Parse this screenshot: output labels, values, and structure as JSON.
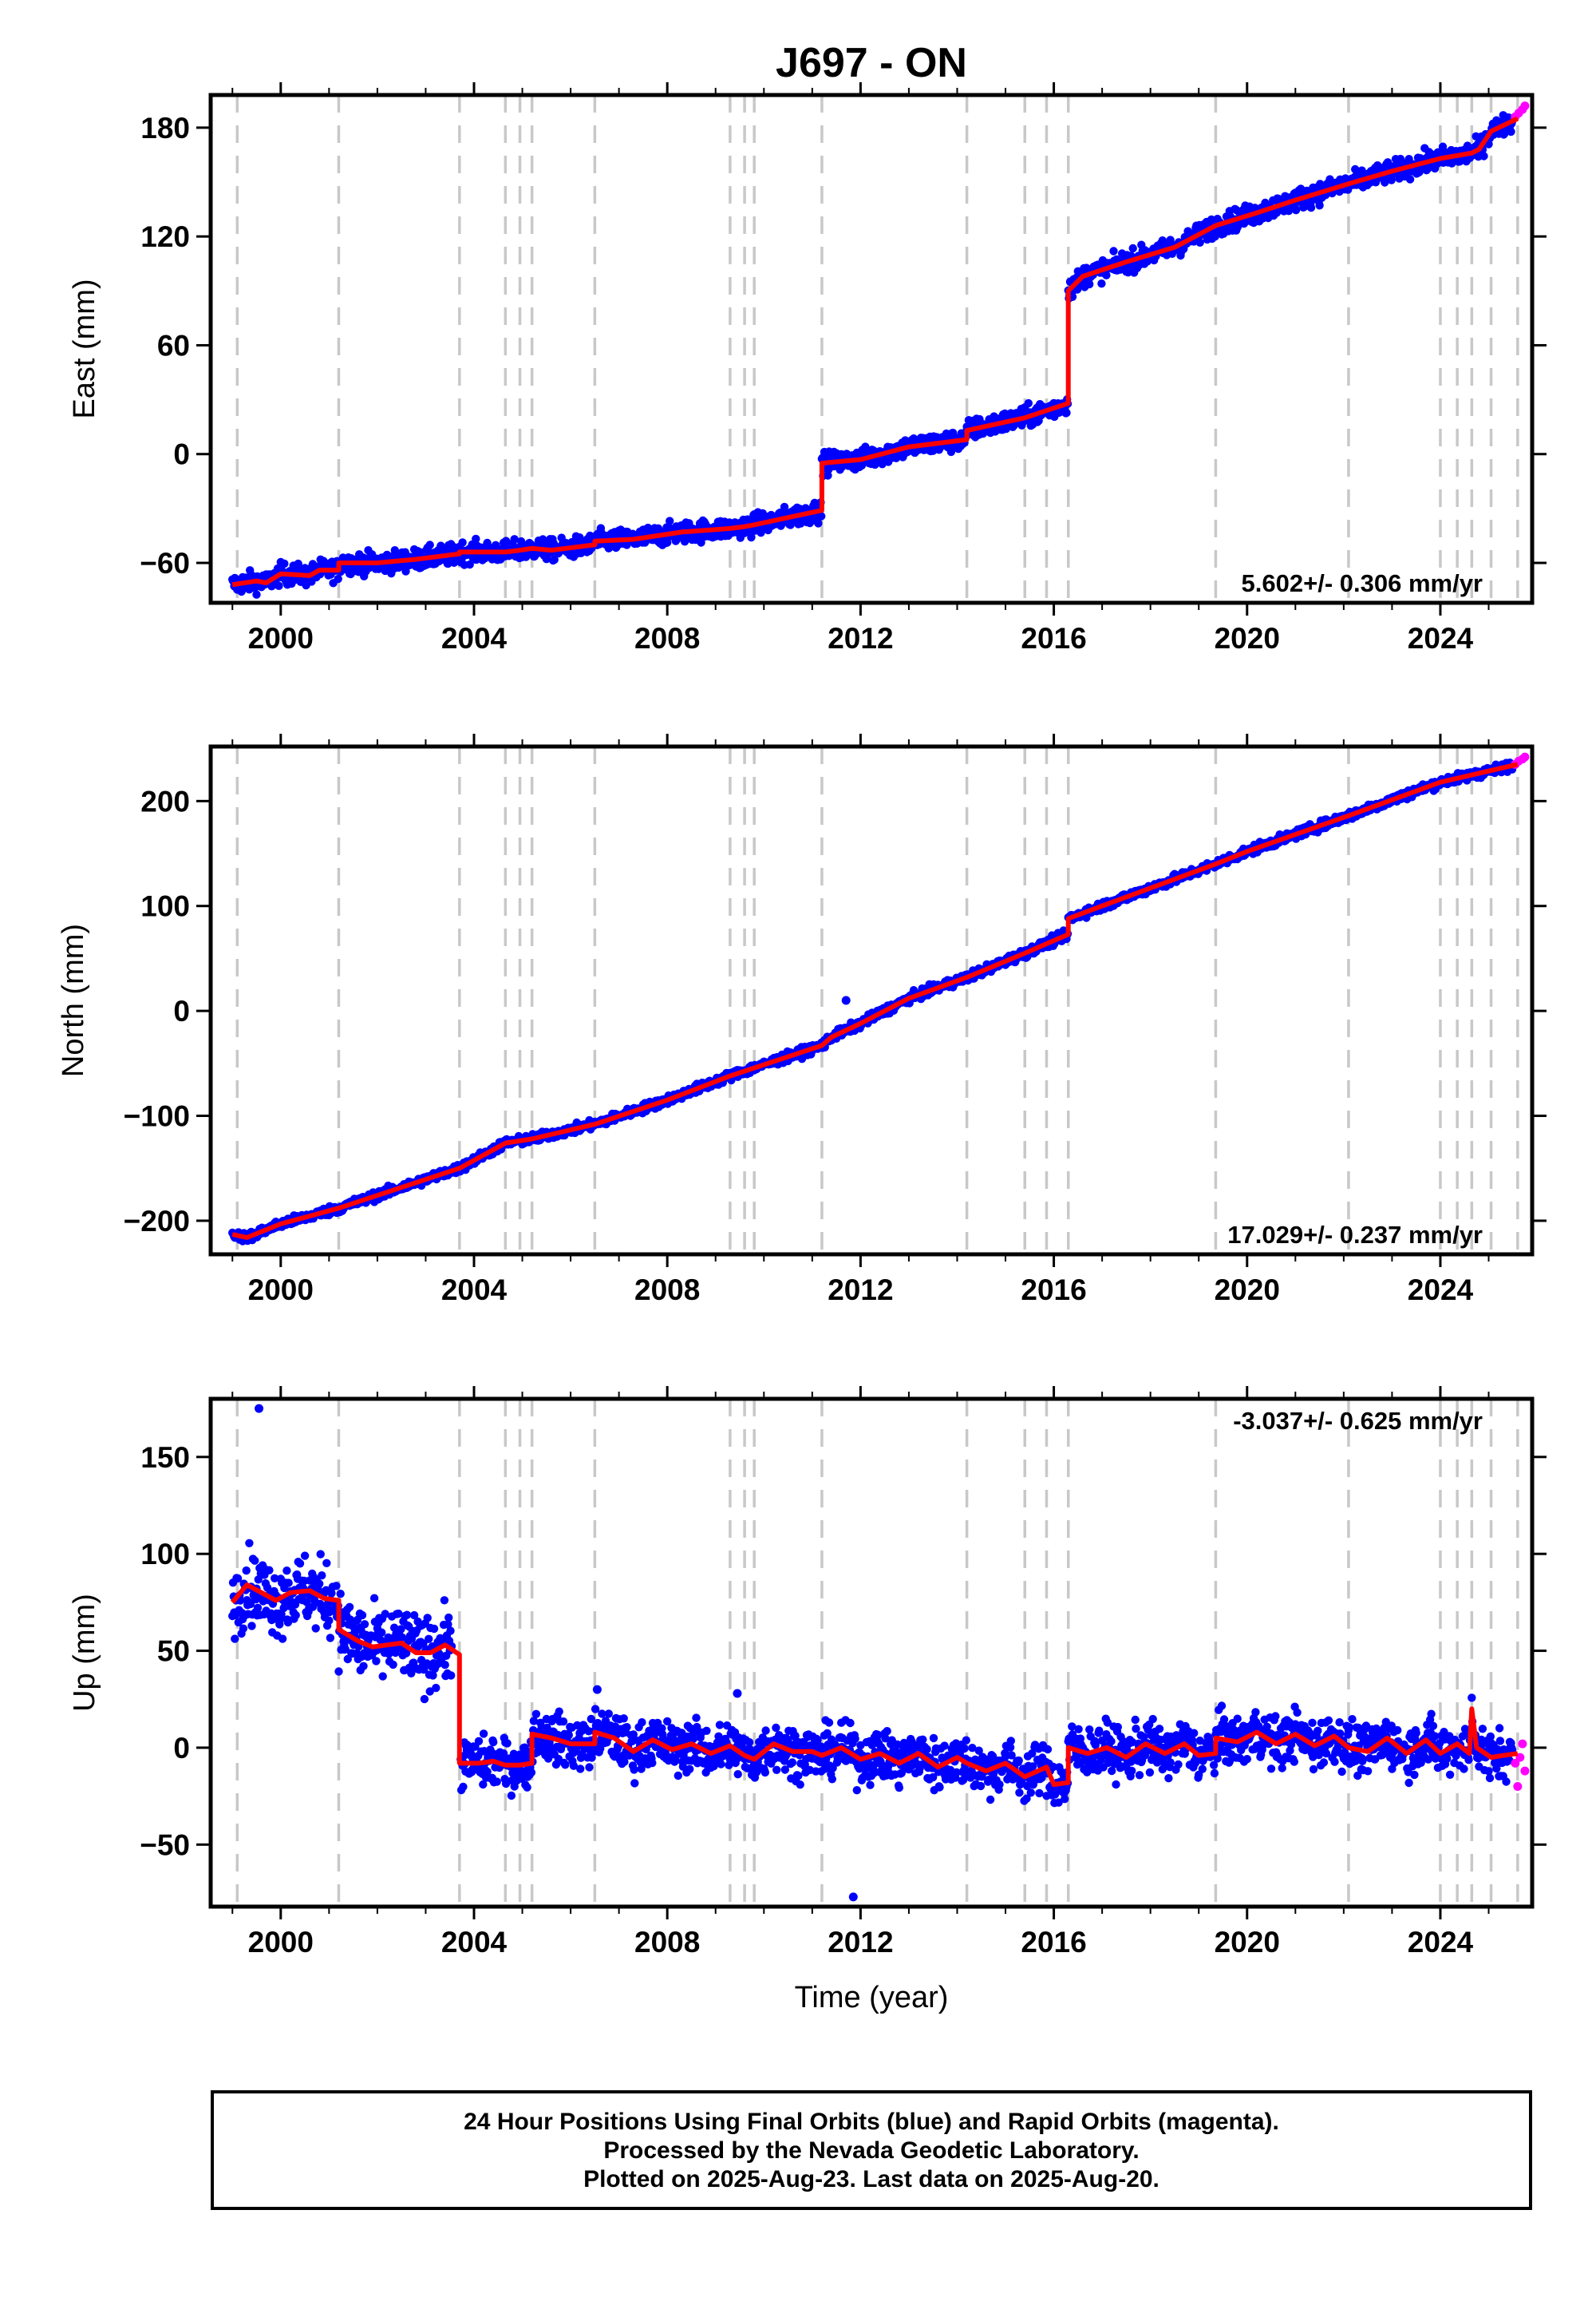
{
  "chart_data": {
    "type": "scatter",
    "title": "J697 - ON",
    "xlabel": "Time (year)",
    "xlim": [
      1998.55,
      2025.9
    ],
    "xticks": [
      2000,
      2004,
      2008,
      2012,
      2016,
      2020,
      2024
    ],
    "event_lines": [
      1999.1,
      2001.2,
      2003.7,
      2004.65,
      2004.95,
      2005.2,
      2006.5,
      2009.3,
      2009.6,
      2009.8,
      2011.2,
      2014.2,
      2015.4,
      2015.85,
      2016.3,
      2019.35,
      2022.1,
      2024.0,
      2024.35,
      2024.65,
      2025.05,
      2025.6
    ],
    "colors": {
      "final": "#0000ff",
      "rapid": "#ff00ff",
      "model": "#ff0000",
      "event": "#c8c8c8"
    },
    "panels": [
      {
        "ylabel": "East (mm)",
        "ylim": [
          -82,
          198
        ],
        "yticks": [
          -60,
          0,
          60,
          120,
          180
        ],
        "rate_text": "5.602+/- 0.306 mm/yr",
        "rate_position": "bottom-right",
        "model": [
          [
            1999.0,
            -72
          ],
          [
            1999.5,
            -70
          ],
          [
            1999.7,
            -71
          ],
          [
            2000.0,
            -66
          ],
          [
            2000.6,
            -67
          ],
          [
            2000.8,
            -64
          ],
          [
            2001.2,
            -64
          ],
          [
            2001.2,
            -60
          ],
          [
            2002.0,
            -60
          ],
          [
            2002.8,
            -58
          ],
          [
            2003.7,
            -55
          ],
          [
            2003.7,
            -54
          ],
          [
            2004.65,
            -54
          ],
          [
            2004.95,
            -53
          ],
          [
            2005.2,
            -52
          ],
          [
            2005.6,
            -53
          ],
          [
            2006.5,
            -50
          ],
          [
            2006.5,
            -48
          ],
          [
            2007.3,
            -47
          ],
          [
            2008.3,
            -43
          ],
          [
            2009.3,
            -41
          ],
          [
            2009.6,
            -40
          ],
          [
            2009.8,
            -39
          ],
          [
            2010.5,
            -35
          ],
          [
            2011.2,
            -31
          ],
          [
            2011.2,
            -5
          ],
          [
            2012.0,
            -3
          ],
          [
            2013.0,
            4
          ],
          [
            2014.2,
            8
          ],
          [
            2014.2,
            13
          ],
          [
            2015.4,
            20
          ],
          [
            2015.85,
            24
          ],
          [
            2016.3,
            28
          ],
          [
            2016.3,
            90
          ],
          [
            2016.6,
            98
          ],
          [
            2017.5,
            106
          ],
          [
            2018.5,
            114
          ],
          [
            2019.35,
            126
          ],
          [
            2020.2,
            133
          ],
          [
            2021.0,
            140
          ],
          [
            2022.1,
            149
          ],
          [
            2023.0,
            156
          ],
          [
            2024.0,
            163
          ],
          [
            2024.65,
            166
          ],
          [
            2024.8,
            168
          ],
          [
            2025.05,
            178
          ],
          [
            2025.6,
            185
          ]
        ],
        "final_spread": 4,
        "rapid": [
          [
            2025.55,
            186
          ],
          [
            2025.62,
            188
          ],
          [
            2025.7,
            190
          ],
          [
            2025.75,
            192
          ]
        ]
      },
      {
        "ylabel": "North (mm)",
        "ylim": [
          -232,
          252
        ],
        "yticks": [
          -200,
          -100,
          0,
          100,
          200
        ],
        "rate_text": "17.029+/- 0.237 mm/yr",
        "rate_position": "bottom-right",
        "model": [
          [
            1999.0,
            -213
          ],
          [
            1999.3,
            -216
          ],
          [
            2000.0,
            -203
          ],
          [
            2001.2,
            -188
          ],
          [
            2003.7,
            -150
          ],
          [
            2004.65,
            -126
          ],
          [
            2005.2,
            -122
          ],
          [
            2006.5,
            -108
          ],
          [
            2008.0,
            -85
          ],
          [
            2009.3,
            -62
          ],
          [
            2011.2,
            -33
          ],
          [
            2011.4,
            -25
          ],
          [
            2012.0,
            -12
          ],
          [
            2013.0,
            12
          ],
          [
            2014.2,
            32
          ],
          [
            2015.4,
            55
          ],
          [
            2016.3,
            73
          ],
          [
            2016.3,
            88
          ],
          [
            2017.0,
            100
          ],
          [
            2019.35,
            140
          ],
          [
            2020.0,
            152
          ],
          [
            2022.1,
            186
          ],
          [
            2024.0,
            218
          ],
          [
            2025.6,
            235
          ]
        ],
        "final_spread": 3,
        "rapid": [
          [
            2025.55,
            235
          ],
          [
            2025.62,
            238
          ],
          [
            2025.7,
            240
          ],
          [
            2025.75,
            242
          ]
        ],
        "outliers": [
          [
            2011.7,
            10
          ]
        ]
      },
      {
        "ylabel": "Up (mm)",
        "ylim": [
          -82,
          180
        ],
        "yticks": [
          -50,
          0,
          50,
          100,
          150
        ],
        "rate_text": "-3.037+/- 0.625 mm/yr",
        "rate_position": "top-right",
        "model": [
          [
            1999.0,
            75
          ],
          [
            1999.3,
            84
          ],
          [
            1999.6,
            80
          ],
          [
            1999.9,
            76
          ],
          [
            2000.2,
            80
          ],
          [
            2000.6,
            81
          ],
          [
            2000.9,
            77
          ],
          [
            2001.2,
            76
          ],
          [
            2001.2,
            61
          ],
          [
            2001.6,
            55
          ],
          [
            2001.9,
            52
          ],
          [
            2002.2,
            53
          ],
          [
            2002.5,
            54
          ],
          [
            2002.8,
            49
          ],
          [
            2003.1,
            49
          ],
          [
            2003.4,
            53
          ],
          [
            2003.7,
            48
          ],
          [
            2003.7,
            -8
          ],
          [
            2004.1,
            -8
          ],
          [
            2004.4,
            -7
          ],
          [
            2004.65,
            -9
          ],
          [
            2004.95,
            -9
          ],
          [
            2005.2,
            -8
          ],
          [
            2005.2,
            7
          ],
          [
            2005.6,
            5
          ],
          [
            2006.0,
            2
          ],
          [
            2006.5,
            2
          ],
          [
            2006.5,
            8
          ],
          [
            2006.9,
            5
          ],
          [
            2007.3,
            -2
          ],
          [
            2007.7,
            4
          ],
          [
            2008.1,
            -1
          ],
          [
            2008.5,
            2
          ],
          [
            2008.9,
            -3
          ],
          [
            2009.3,
            1
          ],
          [
            2009.6,
            -4
          ],
          [
            2009.8,
            -6
          ],
          [
            2010.2,
            2
          ],
          [
            2010.6,
            -2
          ],
          [
            2011.0,
            -2
          ],
          [
            2011.2,
            -4
          ],
          [
            2011.6,
            0
          ],
          [
            2012.0,
            -6
          ],
          [
            2012.4,
            -3
          ],
          [
            2012.8,
            -8
          ],
          [
            2013.2,
            -3
          ],
          [
            2013.6,
            -10
          ],
          [
            2014.0,
            -5
          ],
          [
            2014.2,
            -8
          ],
          [
            2014.6,
            -12
          ],
          [
            2015.0,
            -8
          ],
          [
            2015.4,
            -15
          ],
          [
            2015.85,
            -10
          ],
          [
            2016.0,
            -19
          ],
          [
            2016.3,
            -18
          ],
          [
            2016.3,
            0
          ],
          [
            2016.7,
            -3
          ],
          [
            2017.1,
            0
          ],
          [
            2017.5,
            -5
          ],
          [
            2017.9,
            2
          ],
          [
            2018.3,
            -3
          ],
          [
            2018.7,
            2
          ],
          [
            2019.0,
            -4
          ],
          [
            2019.35,
            -3
          ],
          [
            2019.35,
            5
          ],
          [
            2019.8,
            3
          ],
          [
            2020.2,
            8
          ],
          [
            2020.6,
            2
          ],
          [
            2021.0,
            7
          ],
          [
            2021.4,
            1
          ],
          [
            2021.8,
            6
          ],
          [
            2022.1,
            0
          ],
          [
            2022.5,
            -2
          ],
          [
            2022.9,
            5
          ],
          [
            2023.3,
            -3
          ],
          [
            2023.7,
            4
          ],
          [
            2024.0,
            -3
          ],
          [
            2024.35,
            2
          ],
          [
            2024.6,
            -3
          ],
          [
            2024.65,
            20
          ],
          [
            2024.75,
            0
          ],
          [
            2025.05,
            -5
          ],
          [
            2025.3,
            -4
          ],
          [
            2025.6,
            -3
          ]
        ],
        "final_spread": 9,
        "rapid": [
          [
            2025.55,
            -8
          ],
          [
            2025.6,
            -20
          ],
          [
            2025.65,
            -5
          ],
          [
            2025.7,
            2
          ],
          [
            2025.75,
            -12
          ]
        ],
        "outliers": [
          [
            1999.55,
            175
          ],
          [
            2011.85,
            -77
          ],
          [
            2009.45,
            28
          ],
          [
            2006.55,
            30
          ]
        ]
      }
    ]
  },
  "footer": {
    "line1": "24 Hour Positions Using Final Orbits (blue) and Rapid Orbits (magenta).",
    "line2": "Processed by the Nevada Geodetic Laboratory.",
    "line3": "Plotted on 2025-Aug-23. Last data on 2025-Aug-20."
  }
}
